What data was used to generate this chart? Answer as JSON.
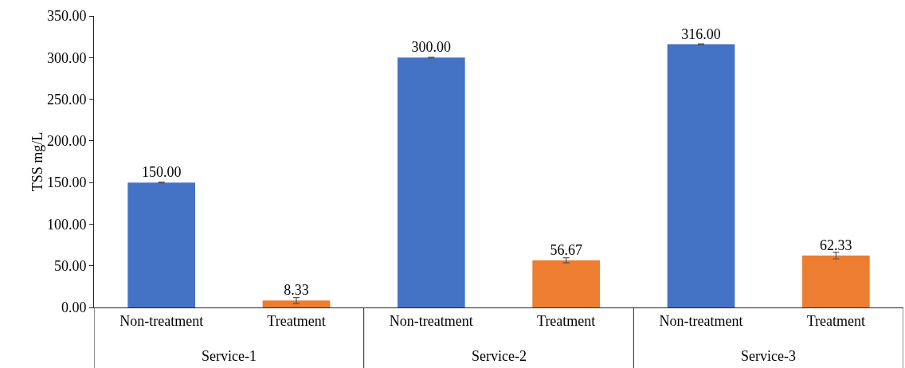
{
  "chart_data": {
    "type": "bar",
    "ylabel": "TSS mg/L",
    "categories": [
      "Non-treatment",
      "Treatment",
      "Non-treatment",
      "Treatment",
      "Non-treatment",
      "Treatment"
    ],
    "values": [
      150,
      8.33,
      300,
      56.67,
      316,
      62.33
    ],
    "colors": [
      "#4472c4",
      "#ed7d31",
      "#4472c4",
      "#ed7d31",
      "#4472c4",
      "#ed7d31"
    ],
    "errors": [
      0.5,
      3.5,
      0.5,
      3,
      0.5,
      4
    ],
    "value_labels": [
      "150.00",
      "8.33",
      "300.00",
      "56.67",
      "316.00",
      "62.33"
    ],
    "annotations": [
      "Service-1",
      "Service-2",
      "Service-3"
    ],
    "ylim": [
      0,
      350
    ],
    "yticks": [
      {
        "value": 0,
        "label": "0.00"
      },
      {
        "value": 50,
        "label": "50.00"
      },
      {
        "value": 100,
        "label": "100.00"
      },
      {
        "value": 150,
        "label": "150.00"
      },
      {
        "value": 200,
        "label": "200.00"
      },
      {
        "value": 250,
        "label": "250.00"
      },
      {
        "value": 300,
        "label": "300.00"
      },
      {
        "value": 350,
        "label": "350.00"
      }
    ],
    "grid": false
  }
}
